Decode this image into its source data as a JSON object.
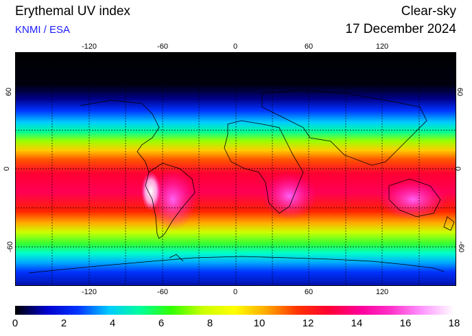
{
  "header": {
    "title": "Erythemal UV index",
    "credit": "KNMI / ESA",
    "mode": "Clear-sky",
    "date": "17 December 2024"
  },
  "map": {
    "lon_ticks": [
      "-120",
      "-60",
      "0",
      "60",
      "120"
    ],
    "lat_ticks": [
      "60",
      "0",
      "-60"
    ],
    "lon_range": [
      -180,
      180
    ],
    "lat_range": [
      -90,
      90
    ],
    "gridlines": "dotted"
  },
  "colorbar": {
    "labels": [
      "0",
      "2",
      "4",
      "6",
      "8",
      "10",
      "12",
      "14",
      "16",
      "18"
    ],
    "range": [
      0,
      18
    ],
    "colors": [
      "#000000",
      "#0000cc",
      "#0033ff",
      "#00ccff",
      "#00ff99",
      "#33ff00",
      "#ccff00",
      "#ffff00",
      "#ffaa00",
      "#ff3300",
      "#ff0033",
      "#ff0099",
      "#ff33cc",
      "#ff99ff",
      "#ffffff"
    ]
  }
}
